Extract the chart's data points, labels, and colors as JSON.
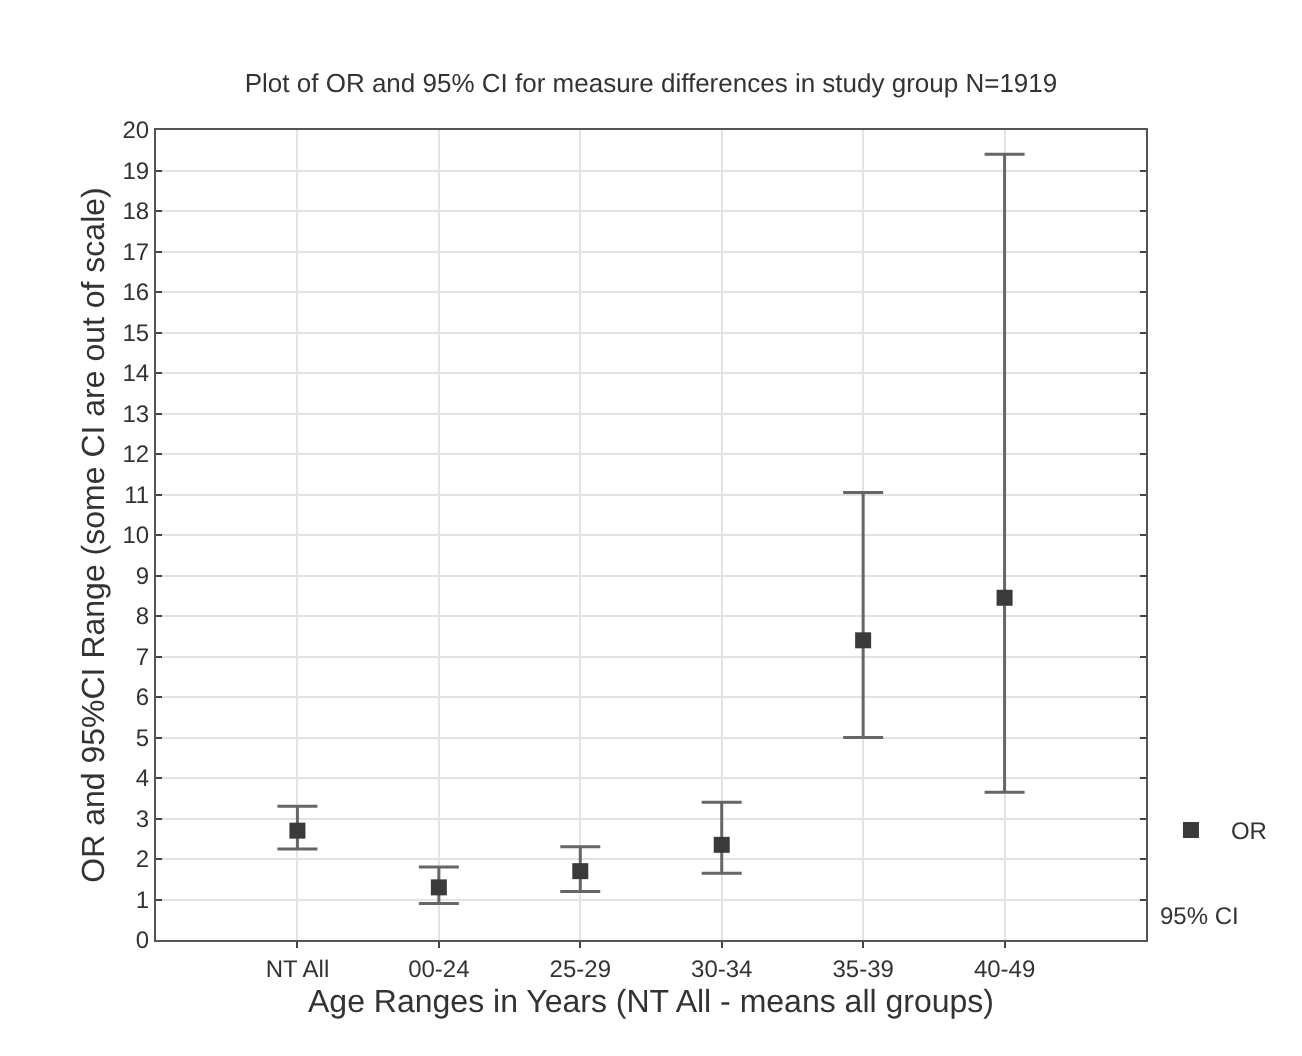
{
  "chart_data": {
    "type": "scatter",
    "title": "Plot of OR and 95% CI for measure differences in study group N=1919",
    "xlabel": "Age Ranges in Years (NT All - means all groups)",
    "ylabel": "OR and 95%CI Range (some CI are out of scale)",
    "categories": [
      "NT All",
      "00-24",
      "25-29",
      "30-34",
      "35-39",
      "40-49"
    ],
    "series": [
      {
        "name": "OR",
        "color": "#3a3a3a",
        "values": [
          2.7,
          1.3,
          1.7,
          2.35,
          7.4,
          8.45
        ],
        "errors": [
          [
            2.25,
            3.3
          ],
          [
            0.9,
            1.8
          ],
          [
            1.2,
            2.3
          ],
          [
            1.65,
            3.4
          ],
          [
            5.0,
            11.05
          ],
          [
            3.65,
            19.4
          ]
        ]
      }
    ],
    "annotations": [
      "95% CI"
    ],
    "ylim": [
      0,
      20
    ],
    "yticks": [
      0,
      1,
      2,
      3,
      4,
      5,
      6,
      7,
      8,
      9,
      10,
      11,
      12,
      13,
      14,
      15,
      16,
      17,
      18,
      19,
      20
    ],
    "grid": true,
    "legend": "bottom right",
    "marker": "square"
  }
}
